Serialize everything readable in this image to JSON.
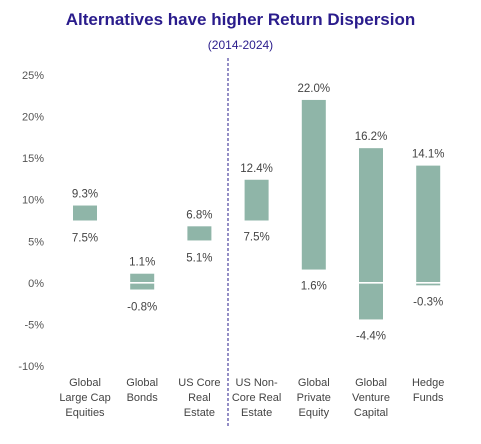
{
  "chart_data": {
    "type": "bar",
    "title": "Alternatives have higher Return Dispersion",
    "subtitle": "(2014-2024)",
    "xlabel": "",
    "ylabel": "",
    "ylim": [
      -10,
      25
    ],
    "yticks": [
      "25%",
      "20%",
      "15%",
      "10%",
      "5%",
      "0%",
      "-5%",
      "-10%"
    ],
    "ytick_values": [
      25,
      20,
      15,
      10,
      5,
      0,
      -5,
      -10
    ],
    "grid": false,
    "legend": "none",
    "bar_color": "#8fb5a8",
    "divider_color": "#2a1c8c",
    "categories": [
      [
        "Global",
        "Large Cap",
        "Equities"
      ],
      [
        "Global",
        "Bonds"
      ],
      [
        "US Core",
        "Real",
        "Estate"
      ],
      [
        "US Non-",
        "Core Real",
        "Estate"
      ],
      [
        "Global",
        "Private",
        "Equity"
      ],
      [
        "Global",
        "Venture",
        "Capital"
      ],
      [
        "Hedge",
        "Funds"
      ]
    ],
    "high": [
      9.3,
      1.1,
      6.8,
      12.4,
      22.0,
      16.2,
      14.1
    ],
    "low": [
      7.5,
      -0.8,
      5.1,
      7.5,
      1.6,
      -4.4,
      -0.3
    ],
    "high_labels": [
      "9.3%",
      "1.1%",
      "6.8%",
      "12.4%",
      "22.0%",
      "16.2%",
      "14.1%"
    ],
    "low_labels": [
      "7.5%",
      "-0.8%",
      "5.1%",
      "7.5%",
      "1.6%",
      "-4.4%",
      "-0.3%"
    ]
  }
}
